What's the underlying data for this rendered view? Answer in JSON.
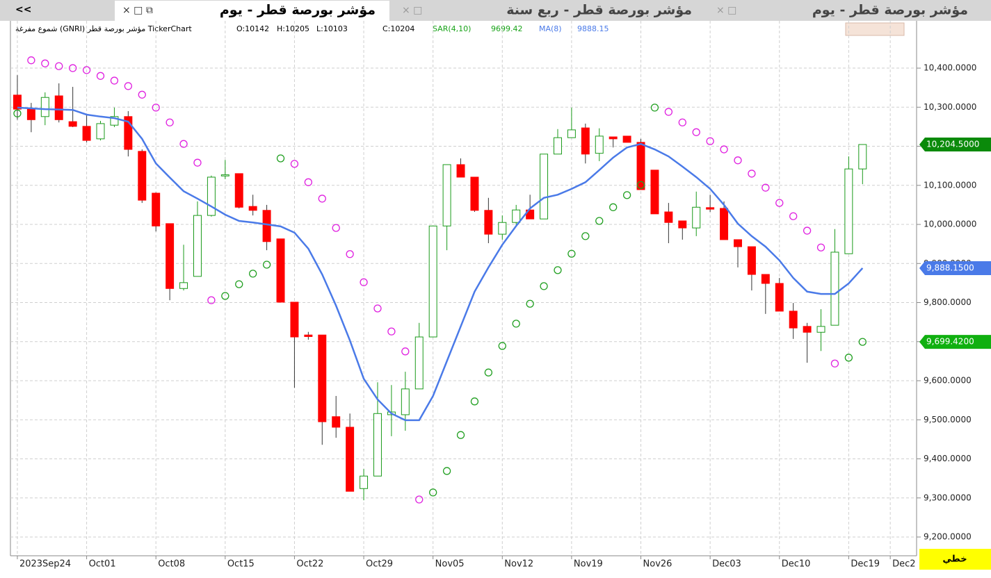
{
  "tabs": {
    "back": "<<",
    "items": [
      "مؤشر بورصة قطر - يوم",
      "مؤشر بورصة قطر - ربع سنة",
      "مؤشر بورصة قطر - يوم"
    ]
  },
  "info": {
    "source": "شموع مفرغة (GNRI) مؤشر بورصة قطر TickerChart",
    "ohlc": [
      "O:10142",
      "H:10205",
      "L:10103",
      "C:10204"
    ]
  },
  "mode_label": "خطي",
  "chart_data": {
    "type": "candlestick",
    "up_color": "#1a9a1a",
    "down_color": "#ff0000",
    "grid": true,
    "xlim": [
      -0.5,
      64.9
    ],
    "xticks": [
      {
        "value": 0,
        "label": "2023Sep24"
      },
      {
        "value": 5,
        "label": "Oct01"
      },
      {
        "value": 10,
        "label": "Oct08"
      },
      {
        "value": 15,
        "label": "Oct15"
      },
      {
        "value": 20,
        "label": "Oct22"
      },
      {
        "value": 25,
        "label": "Oct29"
      },
      {
        "value": 30,
        "label": "Nov05"
      },
      {
        "value": 35,
        "label": "Nov12"
      },
      {
        "value": 40,
        "label": "Nov19"
      },
      {
        "value": 45,
        "label": "Nov26"
      },
      {
        "value": 50,
        "label": "Dec03"
      },
      {
        "value": 55,
        "label": "Dec10"
      },
      {
        "value": 60,
        "label": "Dec19"
      },
      {
        "value": 63,
        "label": "Dec2"
      }
    ],
    "ylim": [
      9152,
      10521
    ],
    "yticks": [
      {
        "value": 9200,
        "label": "9,200.0000"
      },
      {
        "value": 9300,
        "label": "9,300.0000"
      },
      {
        "value": 9400,
        "label": "9,400.0000"
      },
      {
        "value": 9500,
        "label": "9,500.0000"
      },
      {
        "value": 9600,
        "label": "9,600.0000"
      },
      {
        "value": 9700,
        "label": "9,700.0000"
      },
      {
        "value": 9800,
        "label": "9,800.0000"
      },
      {
        "value": 9900,
        "label": "9,900.0000"
      },
      {
        "value": 10000,
        "label": "10,000.0000"
      },
      {
        "value": 10100,
        "label": "10,100.0000"
      },
      {
        "value": 10200,
        "label": "10,200.0000"
      },
      {
        "value": 10300,
        "label": "10,300.0000"
      },
      {
        "value": 10400,
        "label": "10,400.0000"
      }
    ],
    "open": [
      10331,
      10295,
      10276,
      10329,
      10263,
      10251,
      10219,
      10254,
      10276,
      10187,
      10080,
      10002,
      9836,
      9867,
      10023,
      10124,
      10130,
      10046,
      10036,
      9963,
      9801,
      9717,
      9717,
      9508,
      9481,
      9324,
      9356,
      9513,
      9513,
      9579,
      9712,
      9996,
      10153,
      10121,
      10036,
      9975,
      10005,
      10037,
      10014,
      10180,
      10222,
      10247,
      10182,
      10224,
      10226,
      10210,
      10139,
      10032,
      10009,
      9991,
      10043,
      10041,
      9961,
      9943,
      9872,
      9849,
      9778,
      9739,
      9724,
      9742,
      9925,
      10142
    ],
    "high": [
      10382,
      10311,
      10338,
      10361,
      10352,
      10281,
      10265,
      10299,
      10290,
      10192,
      10082,
      10002,
      9948,
      10059,
      10125,
      10165,
      10130,
      10076,
      10050,
      9963,
      9801,
      9725,
      9717,
      9561,
      9516,
      9374,
      9596,
      9589,
      9623,
      9748,
      9996,
      10153,
      10169,
      10121,
      10068,
      10023,
      10050,
      10076,
      10180,
      10244,
      10299,
      10258,
      10246,
      10224,
      10226,
      10219,
      10139,
      10055,
      10009,
      10084,
      10076,
      10059,
      9961,
      9943,
      9872,
      9863,
      9799,
      9748,
      9783,
      9988,
      10174,
      10205
    ],
    "low": [
      10268,
      10236,
      10254,
      10261,
      10249,
      10210,
      10215,
      10249,
      10174,
      10055,
      9982,
      9806,
      9831,
      9867,
      10020,
      10116,
      10041,
      10023,
      9934,
      9801,
      9582,
      9705,
      9436,
      9454,
      9317,
      9294,
      9356,
      9458,
      9472,
      9579,
      9712,
      9934,
      10121,
      10032,
      9952,
      9961,
      9996,
      10014,
      10014,
      10180,
      10222,
      10156,
      10162,
      10197,
      10210,
      10089,
      10027,
      9952,
      9961,
      9970,
      10032,
      9961,
      9890,
      9831,
      9771,
      9778,
      9707,
      9646,
      9676,
      9742,
      9925,
      10103
    ],
    "close": [
      10295,
      10268,
      10325,
      10268,
      10251,
      10215,
      10258,
      10276,
      10192,
      10062,
      9996,
      9836,
      9851,
      10023,
      10121,
      10127,
      10044,
      10036,
      9956,
      9801,
      9712,
      9713,
      9495,
      9481,
      9317,
      9356,
      9516,
      9520,
      9579,
      9712,
      9996,
      10153,
      10121,
      10036,
      9975,
      10005,
      10037,
      10014,
      10180,
      10222,
      10242,
      10180,
      10226,
      10219,
      10210,
      10089,
      10027,
      10005,
      9991,
      10044,
      10039,
      9961,
      9943,
      9872,
      9849,
      9778,
      9735,
      9724,
      9739,
      9929,
      10142,
      10204.5
    ],
    "last_label": "10,204.5000",
    "series": [
      {
        "name": "SAR(4,10)",
        "type": "scatter",
        "color": "#17a317",
        "values": [
          10284,
          10420,
          10412,
          10405,
          10400,
          10395,
          10380,
          10368,
          10354,
          10332,
          10299,
          10261,
          10206,
          10158,
          9806,
          9817,
          9847,
          9874,
          9897,
          10169,
          10155,
          10108,
          10066,
          9991,
          9924,
          9852,
          9785,
          9726,
          9675,
          9296,
          9314,
          9369,
          9461,
          9547,
          9621,
          9689,
          9746,
          9797,
          9842,
          9883,
          9925,
          9970,
          10009,
          10044,
          10075,
          10101,
          10299,
          10288,
          10261,
          10236,
          10213,
          10192,
          10164,
          10130,
          10094,
          10055,
          10021,
          9984,
          9941,
          9644,
          9659,
          9699.42
        ],
        "colors": [
          "#22a022",
          "#e020e0",
          "#e020e0",
          "#e020e0",
          "#e020e0",
          "#e020e0",
          "#e020e0",
          "#e020e0",
          "#e020e0",
          "#e020e0",
          "#e020e0",
          "#e020e0",
          "#e020e0",
          "#e020e0",
          "#e020e0",
          "#22a022",
          "#22a022",
          "#22a022",
          "#22a022",
          "#22a022",
          "#e020e0",
          "#e020e0",
          "#e020e0",
          "#e020e0",
          "#e020e0",
          "#e020e0",
          "#e020e0",
          "#e020e0",
          "#e020e0",
          "#e020e0",
          "#22a022",
          "#22a022",
          "#22a022",
          "#22a022",
          "#22a022",
          "#22a022",
          "#22a022",
          "#22a022",
          "#22a022",
          "#22a022",
          "#22a022",
          "#22a022",
          "#22a022",
          "#22a022",
          "#22a022",
          "#22a022",
          "#22a022",
          "#e020e0",
          "#e020e0",
          "#e020e0",
          "#e020e0",
          "#e020e0",
          "#e020e0",
          "#e020e0",
          "#e020e0",
          "#e020e0",
          "#e020e0",
          "#e020e0",
          "#e020e0",
          "#e020e0",
          "#22a022",
          "#22a022"
        ],
        "last_label": "9,699.4200"
      },
      {
        "name": "MA(8)",
        "type": "line",
        "color": "#4a7ae8",
        "values": [
          10299,
          10297,
          10295,
          10294,
          10293,
          10281,
          10276,
          10272,
          10263,
          10219,
          10156,
          10120,
          10085,
          10066,
          10046,
          10025,
          10009,
          10005,
          10000,
          9995,
          9979,
          9938,
          9872,
          9792,
          9703,
          9605,
          9552,
          9516,
          9499,
          9499,
          9561,
          9650,
          9739,
          9828,
          9890,
          9948,
          9996,
          10041,
          10068,
          10076,
          10091,
          10108,
          10139,
          10171,
          10197,
          10206,
          10192,
          10174,
          10148,
          10121,
          10091,
          10050,
          10002,
          9970,
          9943,
          9908,
          9863,
          9828,
          9822,
          9822,
          9849,
          9888.15
        ],
        "last_label": "9,888.1500"
      }
    ]
  }
}
